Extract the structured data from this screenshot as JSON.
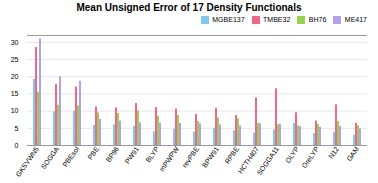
{
  "chart_data": {
    "type": "bar",
    "title": "Mean Unsigned Error of 17 Density Functionals",
    "categories": [
      "GKSVWN5",
      "SOGGA",
      "PBEsol",
      "PBE",
      "BP86",
      "PW91",
      "BLYP",
      "mPWPW",
      "revPBE",
      "BPW91",
      "RPBE",
      "HCTH407",
      "SOGGA11",
      "OLYP",
      "OreLYP",
      "N12",
      "GAM"
    ],
    "series": [
      {
        "name": "MGBE137",
        "color": "#80c8f0",
        "values": [
          19.2,
          9.8,
          10.0,
          5.8,
          6.0,
          5.6,
          4.0,
          4.7,
          3.9,
          5.0,
          4.3,
          3.6,
          4.5,
          6.4,
          3.5,
          3.8,
          3.0
        ]
      },
      {
        "name": "TMBE32",
        "color": "#f06888",
        "values": [
          28.5,
          17.8,
          17.0,
          11.2,
          10.9,
          12.2,
          11.0,
          10.6,
          9.0,
          10.8,
          8.7,
          13.8,
          16.5,
          9.5,
          7.1,
          11.8,
          6.4
        ]
      },
      {
        "name": "BH76",
        "color": "#98d050",
        "values": [
          15.5,
          11.7,
          11.5,
          9.5,
          9.3,
          10.0,
          8.5,
          8.7,
          7.0,
          8.0,
          7.8,
          6.5,
          6.0,
          5.7,
          6.1,
          7.0,
          5.7
        ]
      },
      {
        "name": "ME417",
        "color": "#b8a0e8",
        "values": [
          31.0,
          20.0,
          18.7,
          7.6,
          7.1,
          6.6,
          6.5,
          6.4,
          6.3,
          6.0,
          5.7,
          6.3,
          6.2,
          5.5,
          5.3,
          5.6,
          4.8
        ]
      }
    ],
    "ylim": [
      0,
      32
    ],
    "yticks": [
      0,
      5,
      10,
      15,
      20,
      25,
      30
    ],
    "grid": true,
    "legend": "upper right"
  }
}
